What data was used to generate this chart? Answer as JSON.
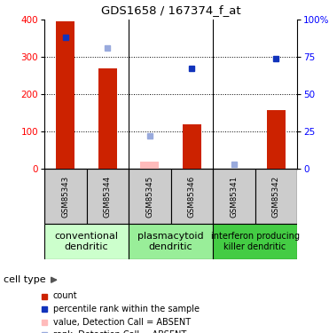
{
  "title": "GDS1658 / 167374_f_at",
  "samples": [
    "GSM85343",
    "GSM85344",
    "GSM85345",
    "GSM85346",
    "GSM85341",
    "GSM85342"
  ],
  "bar_values": [
    395,
    270,
    null,
    118,
    null,
    158
  ],
  "bar_absent_values": [
    null,
    null,
    18,
    null,
    null,
    null
  ],
  "rank_values": [
    88,
    null,
    null,
    67,
    null,
    74
  ],
  "rank_absent_values": [
    null,
    81,
    22,
    null,
    3,
    null
  ],
  "ylim_left": [
    0,
    400
  ],
  "ylim_right": [
    0,
    100
  ],
  "left_ticks": [
    0,
    100,
    200,
    300,
    400
  ],
  "right_ticks": [
    0,
    25,
    50,
    75,
    100
  ],
  "right_tick_labels": [
    "0",
    "25",
    "50",
    "75",
    "100%"
  ],
  "bar_color": "#cc2200",
  "bar_absent_color": "#ffbbbb",
  "rank_color": "#1133bb",
  "rank_absent_color": "#99aadd",
  "groups": [
    {
      "label": "conventional\ndendritic",
      "start": 0,
      "end": 2,
      "color": "#ccffcc"
    },
    {
      "label": "plasmacytoid\ndendritic",
      "start": 2,
      "end": 4,
      "color": "#99ee99"
    },
    {
      "label": "interferon producing\nkiller dendritic",
      "start": 4,
      "end": 6,
      "color": "#44cc44"
    }
  ],
  "cell_type_label": "cell type",
  "legend_items": [
    {
      "color": "#cc2200",
      "label": "count"
    },
    {
      "color": "#1133bb",
      "label": "percentile rank within the sample"
    },
    {
      "color": "#ffbbbb",
      "label": "value, Detection Call = ABSENT"
    },
    {
      "color": "#99aadd",
      "label": "rank, Detection Call = ABSENT"
    }
  ],
  "sample_box_color": "#cccccc",
  "dotgrid_color": "#000000"
}
